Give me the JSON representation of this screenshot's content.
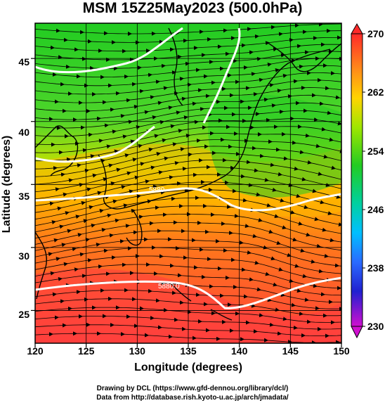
{
  "title": "MSM 15Z25May2023 (500.0hPa)",
  "map": {
    "xlabel": "Longitude (degrees)",
    "ylabel": "Latitude  (degrees)",
    "lon_range": [
      120,
      150
    ],
    "lat_range": [
      22.4,
      47.8
    ],
    "lon_ticks": [
      "120",
      "125",
      "130",
      "135",
      "140",
      "145",
      "150"
    ],
    "lat_ticks": [
      "25",
      "30",
      "35",
      "40",
      "45"
    ],
    "contour_labels": [
      "5880",
      "5880.0"
    ],
    "colors": {
      "cold": "#22cc22",
      "mid": "#e8e600",
      "warm": "#ff6a1a",
      "hot": "#ff3a3a",
      "contour": "#ffffff",
      "streamline": "#000000"
    }
  },
  "colorbar": {
    "labels": [
      "270",
      "262",
      "254",
      "246",
      "238",
      "230"
    ],
    "min": 230,
    "max": 270
  },
  "credits": {
    "line1": "Drawing by DCL (https://www.gfd-dennou.org/library/dcl/)",
    "line2": "Data from http://database.rish.kyoto-u.ac.jp/arch/jmadata/"
  }
}
